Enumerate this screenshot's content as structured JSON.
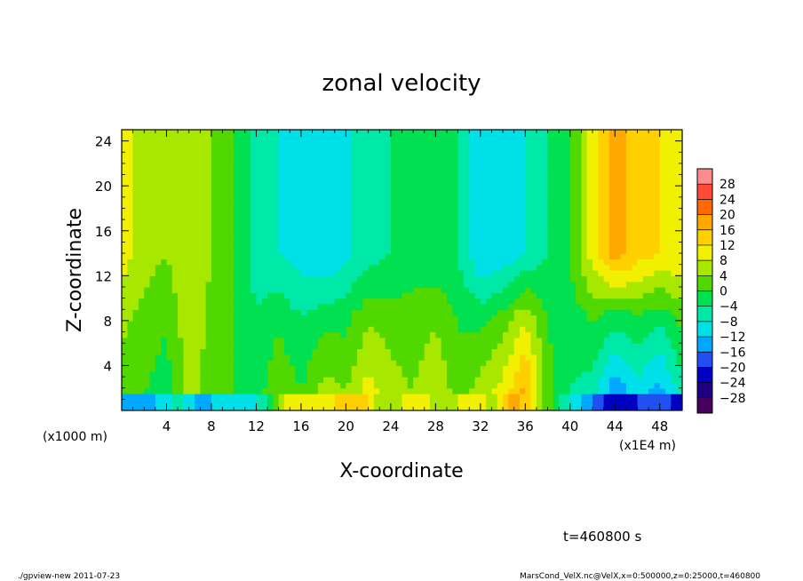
{
  "chart_data": {
    "type": "heatmap",
    "title": "zonal velocity",
    "xlabel": "X-coordinate",
    "ylabel": "Z-coordinate",
    "x_unit_label": "(x1E4 m)",
    "y_unit_label": "(x1000 m)",
    "xlim": [
      0,
      50
    ],
    "ylim": [
      0,
      25
    ],
    "x_ticks": [
      4,
      8,
      12,
      16,
      20,
      24,
      28,
      32,
      36,
      40,
      44,
      48
    ],
    "y_ticks": [
      4,
      8,
      12,
      16,
      20,
      24
    ],
    "colorbar": {
      "levels": [
        28,
        24,
        20,
        16,
        12,
        8,
        4,
        0,
        -4,
        -8,
        -12,
        -16,
        -20,
        -24,
        -28
      ],
      "label_texts": [
        "28",
        "24",
        "20",
        "16",
        "12",
        "8",
        "4",
        "0",
        "−4",
        "−8",
        "−12",
        "−16",
        "−20",
        "−24",
        "−28"
      ],
      "colors": [
        "#ff8c8c",
        "#ff4a3a",
        "#ff6a00",
        "#ffa800",
        "#ffd000",
        "#f0f000",
        "#a8e800",
        "#50d800",
        "#00e050",
        "#00e8a8",
        "#00e0e8",
        "#00a8ff",
        "#2050f0",
        "#0000c0",
        "#200080",
        "#480060"
      ]
    },
    "profile": {
      "comment_units": "zonal velocity (same units as colorbar) by x position",
      "x": [
        0,
        2,
        4,
        6,
        8,
        10,
        12,
        14,
        16,
        18,
        20,
        22,
        24,
        26,
        28,
        30,
        32,
        34,
        36,
        38,
        40,
        42,
        44,
        46,
        48,
        50
      ],
      "upper_values": [
        10,
        6,
        4,
        8,
        4,
        0,
        -6,
        -8,
        -10,
        -12,
        -9,
        -6,
        -4,
        -2,
        -3,
        -4,
        -12,
        -11,
        -8,
        -4,
        0,
        10,
        18,
        14,
        12,
        12
      ],
      "lower_values": [
        2,
        0,
        -2,
        6,
        2,
        0,
        -2,
        4,
        0,
        6,
        4,
        10,
        6,
        4,
        8,
        2,
        6,
        10,
        18,
        2,
        -4,
        -6,
        -16,
        -10,
        -14,
        -6
      ]
    },
    "bottom_band": {
      "x": [
        1,
        3,
        5,
        7,
        9,
        11,
        13,
        15,
        17,
        19,
        21,
        23,
        25,
        27,
        29,
        31,
        33,
        35,
        37,
        39,
        41,
        43,
        45,
        47,
        49
      ],
      "values": [
        -14,
        -12,
        -6,
        -14,
        -10,
        -12,
        -4,
        10,
        8,
        12,
        16,
        6,
        8,
        10,
        4,
        12,
        6,
        20,
        8,
        -4,
        -12,
        -20,
        -24,
        -16,
        -20
      ]
    }
  },
  "annotations": {
    "time_label": "t=460800 s",
    "footer_left": "./gpview-new   2011-07-23",
    "footer_right": "MarsCond_VelX.nc@VelX,x=0:500000,z=0:25000,t=460800"
  }
}
